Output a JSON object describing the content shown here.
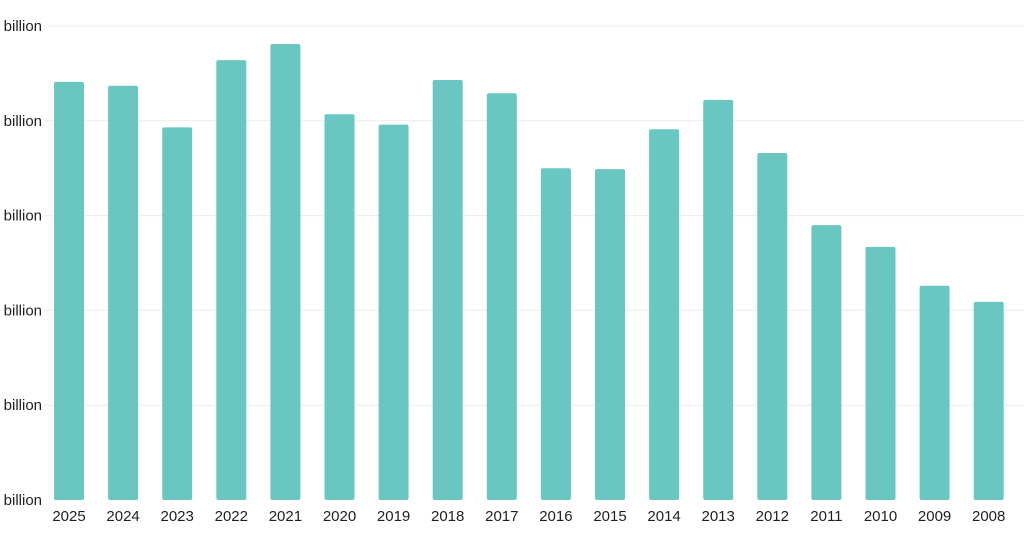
{
  "chart_data": {
    "type": "bar",
    "categories": [
      "2025",
      "2024",
      "2023",
      "2022",
      "2021",
      "2020",
      "2019",
      "2018",
      "2017",
      "2016",
      "2015",
      "2014",
      "2013",
      "2012",
      "2011",
      "2010",
      "2009",
      "2008"
    ],
    "values": [
      4.41,
      4.37,
      3.93,
      4.64,
      4.81,
      4.07,
      3.96,
      4.43,
      4.29,
      3.5,
      3.49,
      3.91,
      4.22,
      3.66,
      2.9,
      2.67,
      2.26,
      2.09
    ],
    "y_ticks": [
      {
        "value": 0,
        "label": "billion"
      },
      {
        "value": 1,
        "label": "billion"
      },
      {
        "value": 2,
        "label": "billion"
      },
      {
        "value": 3,
        "label": "billion"
      },
      {
        "value": 4,
        "label": "billion"
      },
      {
        "value": 5,
        "label": "billion"
      }
    ],
    "ylim": [
      0,
      5
    ],
    "grid": true,
    "title": "",
    "xlabel": "",
    "ylabel": "",
    "colors": {
      "bar": "#6ac6c1",
      "grid": "#ececec",
      "text": "#1f1f1f"
    }
  }
}
